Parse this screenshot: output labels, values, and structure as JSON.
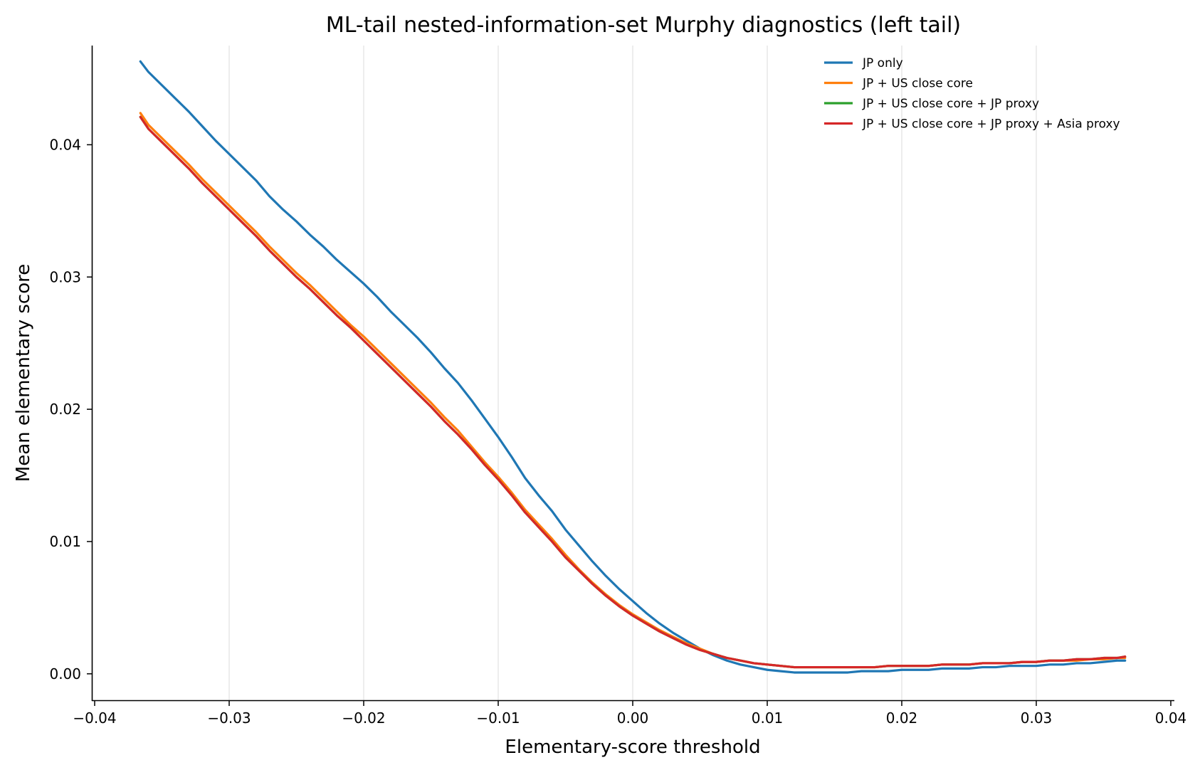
{
  "chart_data": {
    "type": "line",
    "title": "ML-tail nested-information-set Murphy diagnostics (left tail)",
    "xlabel": "Elementary-score threshold",
    "ylabel": "Mean elementary score",
    "xlim": [
      -0.04,
      0.04
    ],
    "ylim": [
      -0.002,
      0.0475
    ],
    "xticks": [
      -0.04,
      -0.03,
      -0.02,
      -0.01,
      0.0,
      0.01,
      0.02,
      0.03,
      0.04
    ],
    "xtick_labels": [
      "−0.04",
      "−0.03",
      "−0.02",
      "−0.01",
      "0.00",
      "0.01",
      "0.02",
      "0.03",
      "0.04"
    ],
    "yticks": [
      0.0,
      0.01,
      0.02,
      0.03,
      0.04
    ],
    "ytick_labels": [
      "0.00",
      "0.01",
      "0.02",
      "0.03",
      "0.04"
    ],
    "grid": "vertical",
    "legend_position": "top-right",
    "series": [
      {
        "name": "JP only",
        "color": "#1f77b4",
        "x": [
          -0.0366,
          -0.036,
          -0.035,
          -0.034,
          -0.033,
          -0.032,
          -0.031,
          -0.03,
          -0.029,
          -0.028,
          -0.027,
          -0.026,
          -0.025,
          -0.024,
          -0.023,
          -0.022,
          -0.021,
          -0.02,
          -0.019,
          -0.018,
          -0.017,
          -0.016,
          -0.015,
          -0.014,
          -0.013,
          -0.012,
          -0.011,
          -0.01,
          -0.009,
          -0.008,
          -0.007,
          -0.006,
          -0.005,
          -0.004,
          -0.003,
          -0.002,
          -0.001,
          0.0,
          0.001,
          0.002,
          0.003,
          0.004,
          0.005,
          0.006,
          0.007,
          0.008,
          0.009,
          0.01,
          0.011,
          0.012,
          0.013,
          0.014,
          0.015,
          0.016,
          0.017,
          0.018,
          0.019,
          0.02,
          0.021,
          0.022,
          0.023,
          0.024,
          0.025,
          0.026,
          0.027,
          0.028,
          0.029,
          0.03,
          0.031,
          0.032,
          0.033,
          0.034,
          0.035,
          0.036,
          0.0366
        ],
        "y": [
          0.0463,
          0.0455,
          0.0445,
          0.0435,
          0.0425,
          0.0414,
          0.0403,
          0.0393,
          0.0383,
          0.0373,
          0.0361,
          0.0351,
          0.0342,
          0.0332,
          0.0323,
          0.0313,
          0.0304,
          0.0295,
          0.0285,
          0.0274,
          0.0264,
          0.0254,
          0.0243,
          0.0231,
          0.022,
          0.0207,
          0.0193,
          0.0179,
          0.0164,
          0.0148,
          0.0135,
          0.0123,
          0.0109,
          0.0097,
          0.0085,
          0.0074,
          0.0064,
          0.0055,
          0.0046,
          0.0038,
          0.0031,
          0.0025,
          0.0019,
          0.0014,
          0.001,
          0.0007,
          0.0005,
          0.0003,
          0.0002,
          0.0001,
          0.0001,
          0.0001,
          0.0001,
          0.0001,
          0.0002,
          0.0002,
          0.0002,
          0.0003,
          0.0003,
          0.0003,
          0.0004,
          0.0004,
          0.0004,
          0.0005,
          0.0005,
          0.0006,
          0.0006,
          0.0006,
          0.0007,
          0.0007,
          0.0008,
          0.0008,
          0.0009,
          0.001,
          0.001
        ]
      },
      {
        "name": "JP + US close core",
        "color": "#ff7f0e",
        "x": [
          -0.0366,
          -0.036,
          -0.035,
          -0.034,
          -0.033,
          -0.032,
          -0.031,
          -0.03,
          -0.029,
          -0.028,
          -0.027,
          -0.026,
          -0.025,
          -0.024,
          -0.023,
          -0.022,
          -0.021,
          -0.02,
          -0.019,
          -0.018,
          -0.017,
          -0.016,
          -0.015,
          -0.014,
          -0.013,
          -0.012,
          -0.011,
          -0.01,
          -0.009,
          -0.008,
          -0.007,
          -0.006,
          -0.005,
          -0.004,
          -0.003,
          -0.002,
          -0.001,
          0.0,
          0.001,
          0.002,
          0.003,
          0.004,
          0.005,
          0.006,
          0.007,
          0.008,
          0.009,
          0.01,
          0.011,
          0.012,
          0.013,
          0.014,
          0.015,
          0.016,
          0.017,
          0.018,
          0.019,
          0.02,
          0.021,
          0.022,
          0.023,
          0.024,
          0.025,
          0.026,
          0.027,
          0.028,
          0.029,
          0.03,
          0.031,
          0.032,
          0.033,
          0.034,
          0.035,
          0.036,
          0.0366
        ],
        "y": [
          0.0424,
          0.0415,
          0.0405,
          0.0395,
          0.0385,
          0.0374,
          0.0364,
          0.0354,
          0.0344,
          0.0334,
          0.0323,
          0.0313,
          0.0303,
          0.0294,
          0.0284,
          0.0274,
          0.0264,
          0.0255,
          0.0245,
          0.0235,
          0.0225,
          0.0215,
          0.0205,
          0.0194,
          0.0184,
          0.0172,
          0.016,
          0.0149,
          0.0137,
          0.0124,
          0.0113,
          0.0102,
          0.009,
          0.0079,
          0.0069,
          0.006,
          0.0052,
          0.0045,
          0.0039,
          0.0033,
          0.0028,
          0.0023,
          0.0019,
          0.0015,
          0.0012,
          0.001,
          0.0008,
          0.0007,
          0.0006,
          0.0005,
          0.0005,
          0.0005,
          0.0005,
          0.0005,
          0.0005,
          0.0005,
          0.0006,
          0.0006,
          0.0006,
          0.0006,
          0.0007,
          0.0007,
          0.0007,
          0.0008,
          0.0008,
          0.0008,
          0.0009,
          0.0009,
          0.001,
          0.001,
          0.001,
          0.0011,
          0.0011,
          0.0012,
          0.0012
        ]
      },
      {
        "name": "JP + US close core + JP proxy",
        "color": "#2ca02c",
        "x": [
          -0.0366,
          -0.036,
          -0.035,
          -0.034,
          -0.033,
          -0.032,
          -0.031,
          -0.03,
          -0.029,
          -0.028,
          -0.027,
          -0.026,
          -0.025,
          -0.024,
          -0.023,
          -0.022,
          -0.021,
          -0.02,
          -0.019,
          -0.018,
          -0.017,
          -0.016,
          -0.015,
          -0.014,
          -0.013,
          -0.012,
          -0.011,
          -0.01,
          -0.009,
          -0.008,
          -0.007,
          -0.006,
          -0.005,
          -0.004,
          -0.003,
          -0.002,
          -0.001,
          0.0,
          0.001,
          0.002,
          0.003,
          0.004,
          0.005,
          0.006,
          0.007,
          0.008,
          0.009,
          0.01,
          0.011,
          0.012,
          0.013,
          0.014,
          0.015,
          0.016,
          0.017,
          0.018,
          0.019,
          0.02,
          0.021,
          0.022,
          0.023,
          0.024,
          0.025,
          0.026,
          0.027,
          0.028,
          0.029,
          0.03,
          0.031,
          0.032,
          0.033,
          0.034,
          0.035,
          0.036,
          0.0366
        ],
        "y": [
          0.0421,
          0.0412,
          0.0402,
          0.0392,
          0.0382,
          0.0371,
          0.0361,
          0.0351,
          0.0341,
          0.0331,
          0.032,
          0.031,
          0.03,
          0.0291,
          0.0281,
          0.0271,
          0.0262,
          0.0252,
          0.0242,
          0.0232,
          0.0222,
          0.0212,
          0.0202,
          0.0191,
          0.0181,
          0.017,
          0.0158,
          0.0147,
          0.0135,
          0.0122,
          0.0111,
          0.01,
          0.0088,
          0.0078,
          0.0068,
          0.0059,
          0.0051,
          0.0044,
          0.0038,
          0.0032,
          0.0027,
          0.0022,
          0.0018,
          0.0015,
          0.0012,
          0.001,
          0.0008,
          0.0007,
          0.0006,
          0.0005,
          0.0005,
          0.0005,
          0.0005,
          0.0005,
          0.0005,
          0.0005,
          0.0006,
          0.0006,
          0.0006,
          0.0006,
          0.0007,
          0.0007,
          0.0007,
          0.0008,
          0.0008,
          0.0008,
          0.0009,
          0.0009,
          0.001,
          0.001,
          0.0011,
          0.0011,
          0.0012,
          0.0012,
          0.0013
        ]
      },
      {
        "name": "JP + US close core + JP proxy + Asia proxy",
        "color": "#d62728",
        "x": [
          -0.0366,
          -0.036,
          -0.035,
          -0.034,
          -0.033,
          -0.032,
          -0.031,
          -0.03,
          -0.029,
          -0.028,
          -0.027,
          -0.026,
          -0.025,
          -0.024,
          -0.023,
          -0.022,
          -0.021,
          -0.02,
          -0.019,
          -0.018,
          -0.017,
          -0.016,
          -0.015,
          -0.014,
          -0.013,
          -0.012,
          -0.011,
          -0.01,
          -0.009,
          -0.008,
          -0.007,
          -0.006,
          -0.005,
          -0.004,
          -0.003,
          -0.002,
          -0.001,
          0.0,
          0.001,
          0.002,
          0.003,
          0.004,
          0.005,
          0.006,
          0.007,
          0.008,
          0.009,
          0.01,
          0.011,
          0.012,
          0.013,
          0.014,
          0.015,
          0.016,
          0.017,
          0.018,
          0.019,
          0.02,
          0.021,
          0.022,
          0.023,
          0.024,
          0.025,
          0.026,
          0.027,
          0.028,
          0.029,
          0.03,
          0.031,
          0.032,
          0.033,
          0.034,
          0.035,
          0.036,
          0.0366
        ],
        "y": [
          0.0421,
          0.0412,
          0.0402,
          0.0392,
          0.0382,
          0.0371,
          0.0361,
          0.0351,
          0.0341,
          0.0331,
          0.032,
          0.031,
          0.03,
          0.0291,
          0.0281,
          0.0271,
          0.0262,
          0.0252,
          0.0242,
          0.0232,
          0.0222,
          0.0212,
          0.0202,
          0.0191,
          0.0181,
          0.017,
          0.0158,
          0.0147,
          0.0135,
          0.0122,
          0.0111,
          0.01,
          0.0088,
          0.0078,
          0.0068,
          0.0059,
          0.0051,
          0.0044,
          0.0038,
          0.0032,
          0.0027,
          0.0022,
          0.0018,
          0.0015,
          0.0012,
          0.001,
          0.0008,
          0.0007,
          0.0006,
          0.0005,
          0.0005,
          0.0005,
          0.0005,
          0.0005,
          0.0005,
          0.0005,
          0.0006,
          0.0006,
          0.0006,
          0.0006,
          0.0007,
          0.0007,
          0.0007,
          0.0008,
          0.0008,
          0.0008,
          0.0009,
          0.0009,
          0.001,
          0.001,
          0.0011,
          0.0011,
          0.0012,
          0.0012,
          0.0013
        ]
      }
    ]
  }
}
